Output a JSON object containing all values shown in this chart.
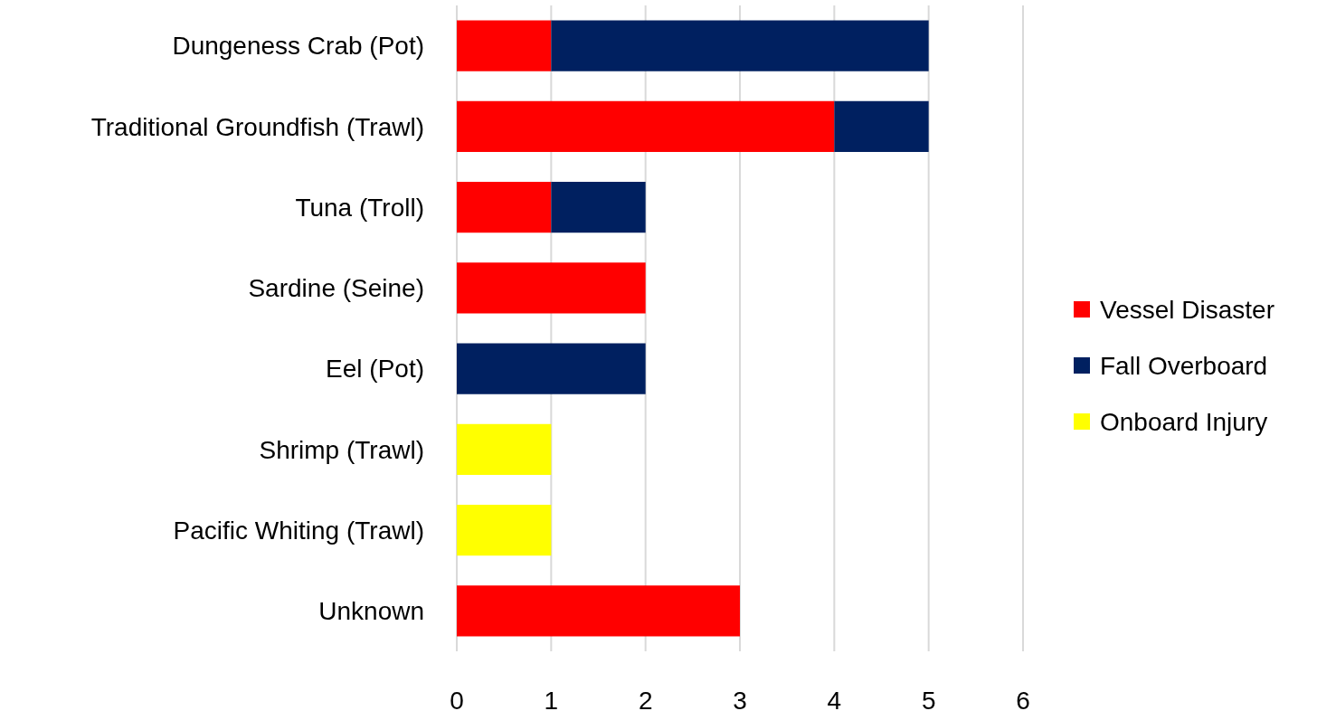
{
  "chart_data": {
    "type": "bar",
    "orientation": "horizontal",
    "stacked": true,
    "categories": [
      "Dungeness Crab (Pot)",
      "Traditional Groundfish (Trawl)",
      "Tuna (Troll)",
      "Sardine (Seine)",
      "Eel (Pot)",
      "Shrimp (Trawl)",
      "Pacific Whiting (Trawl)",
      "Unknown"
    ],
    "series": [
      {
        "name": "Vessel Disaster",
        "color": "#ff0000",
        "values": [
          1,
          4,
          1,
          2,
          0,
          0,
          0,
          3
        ]
      },
      {
        "name": "Fall Overboard",
        "color": "#002060",
        "values": [
          4,
          1,
          1,
          0,
          2,
          0,
          0,
          0
        ]
      },
      {
        "name": "Onboard Injury",
        "color": "#ffff00",
        "values": [
          0,
          0,
          0,
          0,
          0,
          1,
          1,
          0
        ]
      }
    ],
    "xlim": [
      0,
      6
    ],
    "xticks": [
      0,
      1,
      2,
      3,
      4,
      5,
      6
    ],
    "grid": "x",
    "legend": "right"
  }
}
